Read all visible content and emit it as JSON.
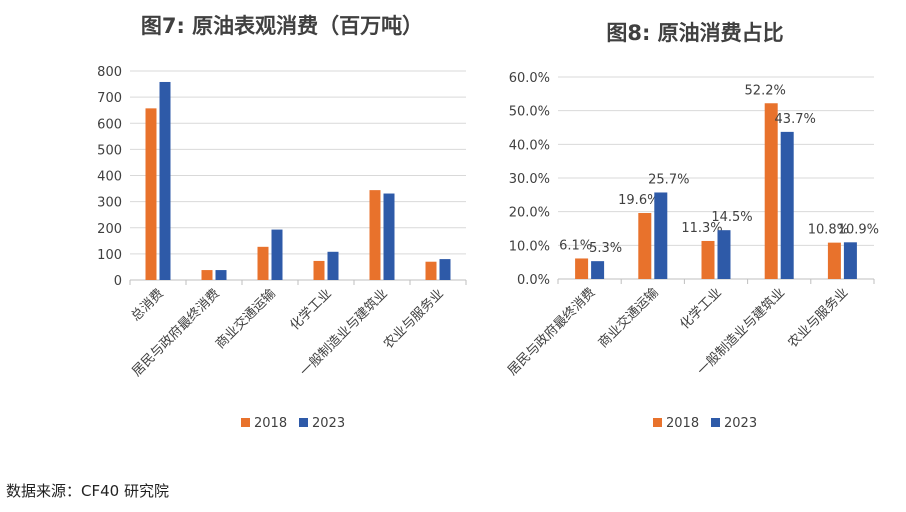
{
  "chart_data": [
    {
      "type": "bar",
      "title": "图7: 原油表观消费（百万吨）",
      "categories": [
        "总消费",
        "居民与政府最终消费",
        "商业交通运输",
        "化学工业",
        "一般制造业与建筑业",
        "农业与服务业"
      ],
      "series": [
        {
          "name": "2018",
          "values": [
            657,
            38,
            127,
            73,
            344,
            70
          ]
        },
        {
          "name": "2023",
          "values": [
            758,
            38,
            193,
            108,
            331,
            80
          ]
        }
      ],
      "yticks": [
        "0",
        "100",
        "200",
        "300",
        "400",
        "500",
        "600",
        "700",
        "800"
      ],
      "ylim": [
        0,
        800
      ],
      "legend": "bottom",
      "grid": true,
      "colors": {
        "2018": "#E8722C",
        "2023": "#2E5AA8"
      }
    },
    {
      "type": "bar",
      "title": "图8: 原油消费占比",
      "categories": [
        "居民与政府最终消费",
        "商业交通运输",
        "化学工业",
        "一般制造业与建筑业",
        "农业与服务业"
      ],
      "series": [
        {
          "name": "2018",
          "values": [
            6.1,
            19.6,
            11.3,
            52.2,
            10.8
          ],
          "labels": [
            "6.1%",
            "19.6%",
            "11.3%",
            "52.2%",
            "10.8%"
          ]
        },
        {
          "name": "2023",
          "values": [
            5.3,
            25.7,
            14.5,
            43.7,
            10.9
          ],
          "labels": [
            "5.3%",
            "25.7%",
            "14.5%",
            "43.7%",
            "10.9%"
          ]
        }
      ],
      "yticks": [
        "0.0%",
        "10.0%",
        "20.0%",
        "30.0%",
        "40.0%",
        "50.0%",
        "60.0%"
      ],
      "ylim": [
        0,
        60
      ],
      "legend": "bottom",
      "grid": true,
      "colors": {
        "2018": "#E8722C",
        "2023": "#2E5AA8"
      }
    }
  ],
  "source": "数据来源：CF40 研究院"
}
